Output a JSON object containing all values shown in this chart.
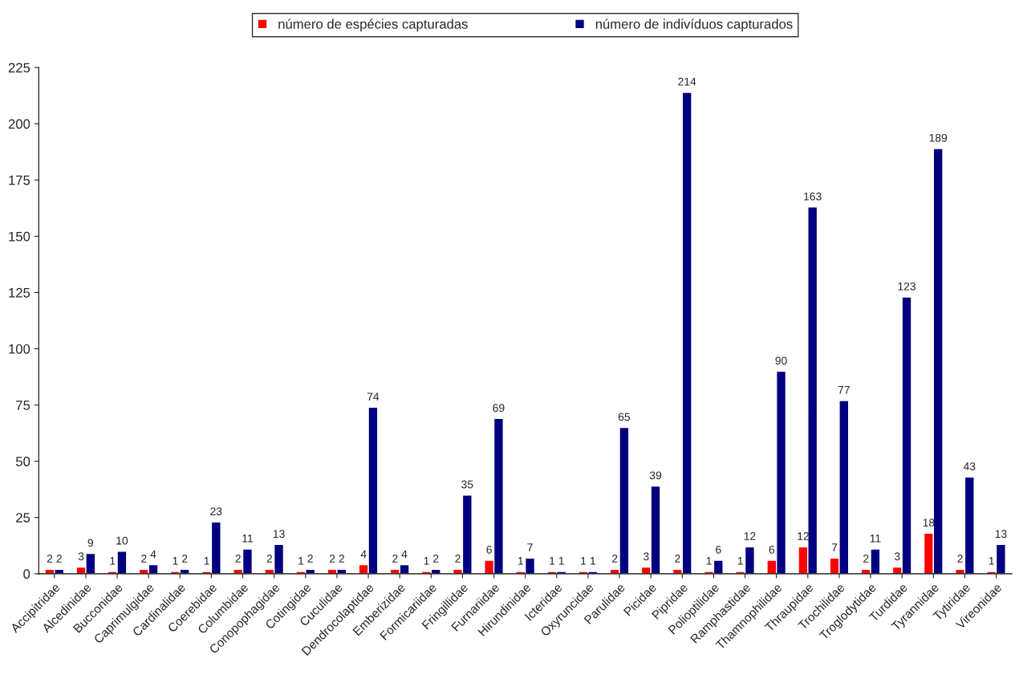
{
  "chart_data": {
    "type": "bar",
    "categories": [
      "Accipitridae",
      "Alcedinidae",
      "Bucconidae",
      "Caprimulgidae",
      "Cardinalidae",
      "Coerebidae",
      "Columbidae",
      "Conopophagidae",
      "Cotingidae",
      "Cuculidae",
      "Dendrocolaptidae",
      "Emberizidae",
      "Formicariidae",
      "Fringillidae",
      "Furnariidae",
      "Hirundinidae",
      "Icteridae",
      "Oxyruncidae",
      "Parulidae",
      "Picidae",
      "Pipridae",
      "Polioptilidae",
      "Ramphastidae",
      "Thamnophilidae",
      "Thraupidae",
      "Trochilidae",
      "Troglodytidae",
      "Turdidae",
      "Tyrannidae",
      "Tytiridae",
      "Vireonidae"
    ],
    "series": [
      {
        "name": "número de espécies capturadas",
        "color": "#ff0000",
        "values": [
          2,
          3,
          1,
          2,
          1,
          1,
          2,
          2,
          1,
          2,
          4,
          2,
          1,
          2,
          6,
          1,
          1,
          1,
          2,
          3,
          2,
          1,
          1,
          6,
          12,
          7,
          2,
          3,
          18,
          2,
          1
        ]
      },
      {
        "name": "número de indivíduos capturados",
        "color": "#000080",
        "values": [
          2,
          9,
          10,
          4,
          2,
          23,
          11,
          13,
          2,
          2,
          74,
          4,
          2,
          35,
          69,
          7,
          1,
          1,
          65,
          39,
          214,
          6,
          12,
          90,
          163,
          77,
          11,
          123,
          189,
          43,
          13
        ]
      }
    ],
    "ylim": [
      0,
      225
    ],
    "yticks": [
      0,
      25,
      50,
      75,
      100,
      125,
      150,
      175,
      200,
      225
    ],
    "data_labels": true,
    "legend": "top",
    "grid": false
  }
}
